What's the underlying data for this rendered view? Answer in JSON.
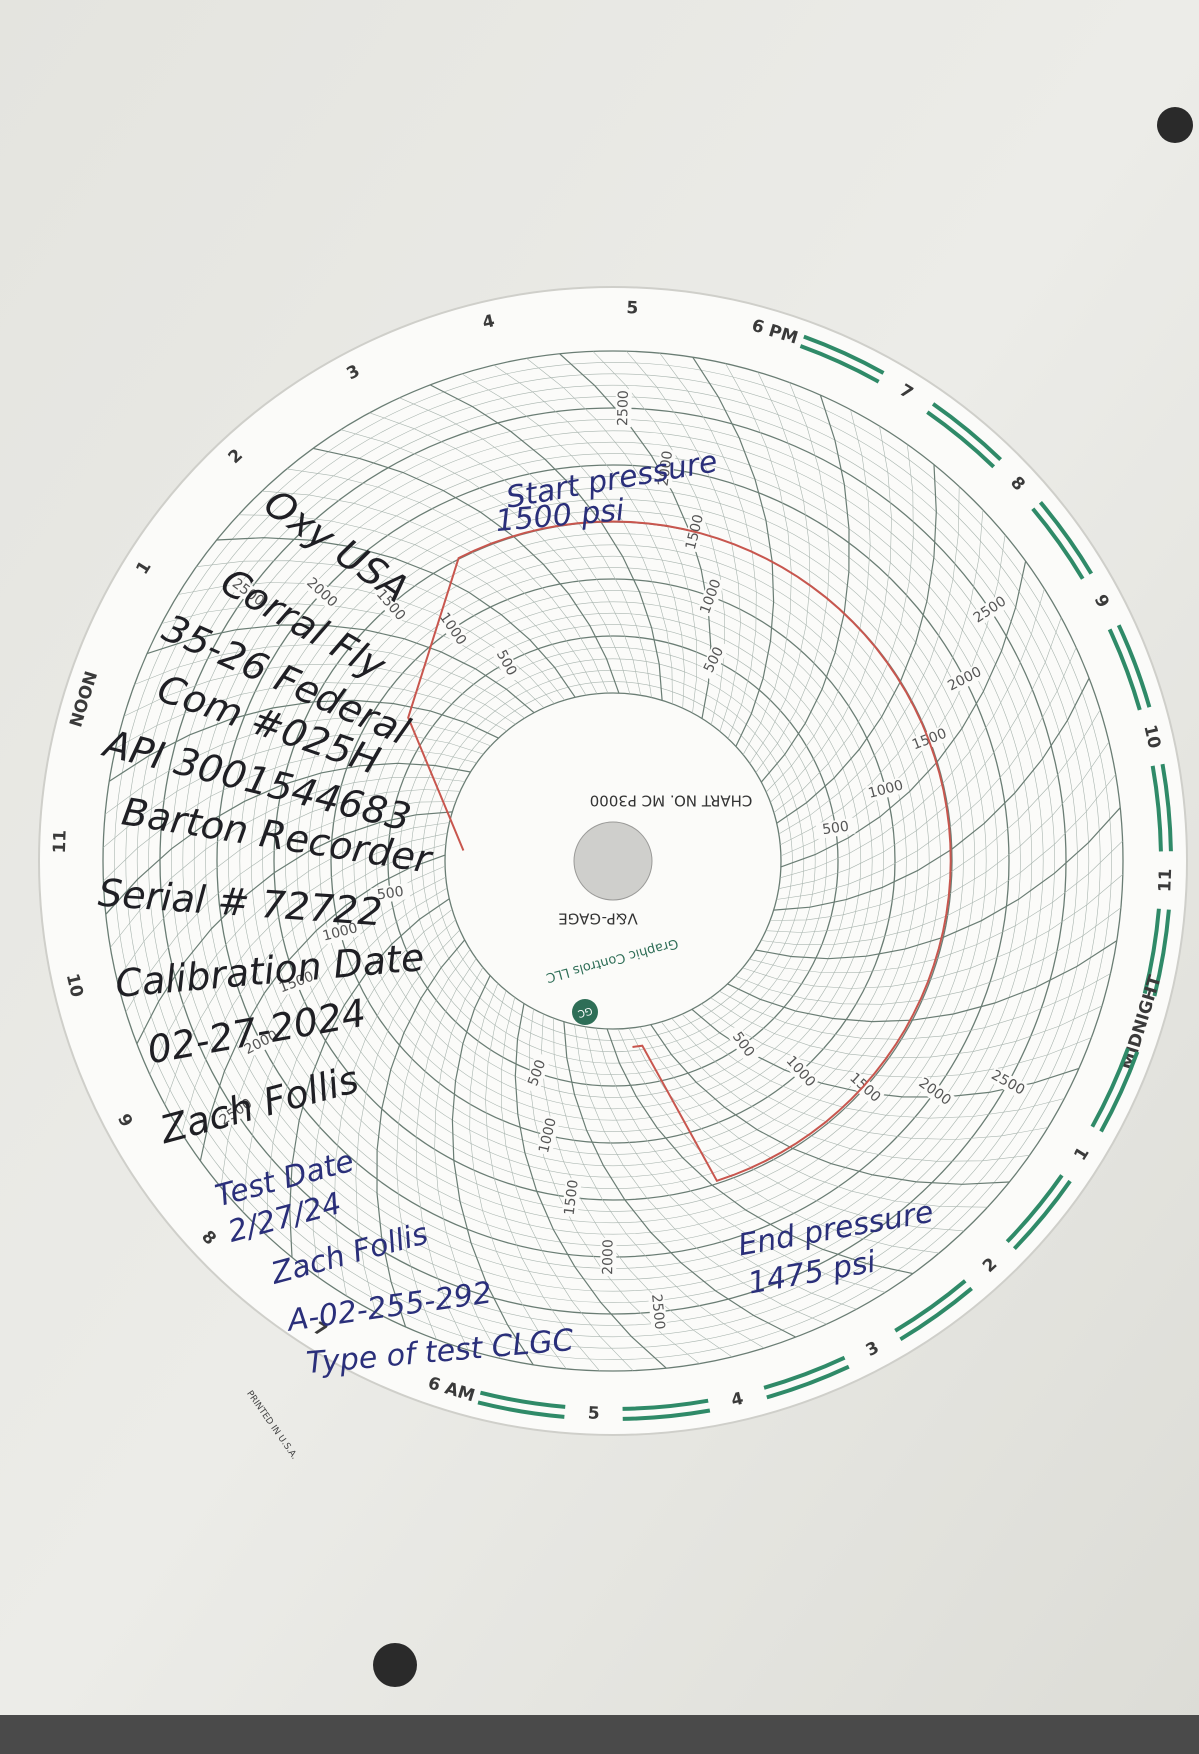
{
  "chart_paper": {
    "hour_labels": [
      "NOON",
      "1",
      "2",
      "3",
      "4",
      "5",
      "6 PM",
      "7",
      "8",
      "9",
      "10",
      "11",
      "MIDNIGHT",
      "1",
      "2",
      "3",
      "4",
      "5",
      "6 AM",
      "7",
      "8",
      "9",
      "10",
      "11"
    ],
    "scale_labels": [
      "500",
      "1000",
      "1500",
      "2000",
      "2500"
    ],
    "chart_number": "CHART NO. MC P3000",
    "gage_name": "V&P-GAGE",
    "maker": "Graphic Controls LLC",
    "maker_logo": "GC",
    "printed_in": "PRINTED IN U.S.A."
  },
  "handwriting": {
    "record_block": [
      "Oxy USA",
      "Corral Fly",
      "35-26 Federal",
      "Com #025H",
      "API 3001544683",
      "Barton Recorder",
      "Serial # 72722",
      "Calibration Date",
      "02-27-2024",
      "Zach Follis"
    ],
    "test_block": [
      "Test Date",
      "2/27/24",
      "Zach Follis",
      "A-02-255-292",
      "Type of test CLGC"
    ],
    "start_note": [
      "Start pressure",
      "1500 psi"
    ],
    "end_note": [
      "End pressure",
      "1475 psi"
    ]
  }
}
